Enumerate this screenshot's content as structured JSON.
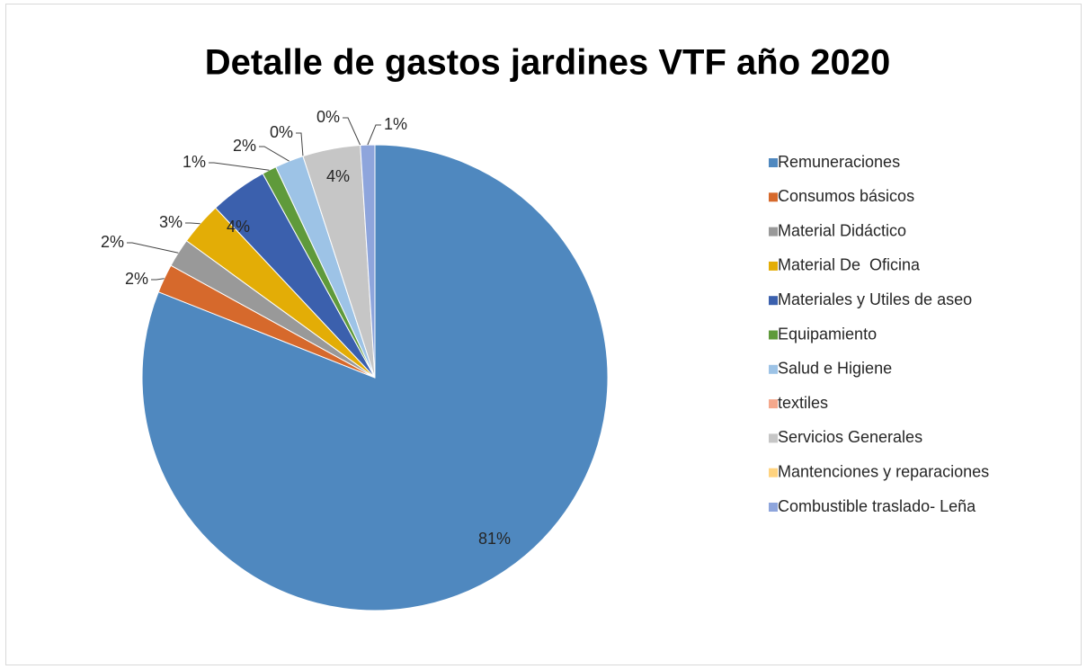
{
  "chart_data": {
    "type": "pie",
    "title": "Detalle de gastos jardines VTF año 2020",
    "categories": [
      "Remuneraciones",
      "Consumos básicos",
      "Material Didáctico",
      "Material De  Oficina",
      "Materiales y Utiles de aseo",
      "Equipamiento",
      "Salud e Higiene",
      "textiles",
      "Servicios Generales",
      "Mantenciones y reparaciones",
      "Combustible traslado- Leña"
    ],
    "values": [
      81,
      2,
      2,
      3,
      4,
      1,
      2,
      0,
      4,
      0,
      1
    ],
    "value_labels": [
      "81%",
      "2%",
      "2%",
      "3%",
      "4%",
      "1%",
      "2%",
      "0%",
      "4%",
      "0%",
      "1%"
    ],
    "colors": [
      "#4f88bf",
      "#d6692c",
      "#999999",
      "#e3ad06",
      "#3b60ad",
      "#5f9a3b",
      "#9dc3e6",
      "#f4a88c",
      "#c6c6c6",
      "#ffd37f",
      "#8ea5dc"
    ],
    "legend": "right"
  }
}
